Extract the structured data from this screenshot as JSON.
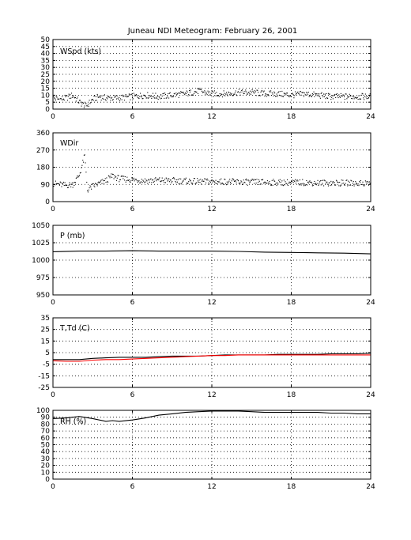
{
  "title": "Juneau NDI Meteogram:  February 26, 2001",
  "chart_data": [
    {
      "type": "scatter",
      "label": "WSpd (kts)",
      "xlim": [
        0,
        24
      ],
      "ylim": [
        0,
        50
      ],
      "xticks": [
        0,
        6,
        12,
        18,
        24
      ],
      "yticks": [
        0,
        5,
        10,
        15,
        20,
        25,
        30,
        35,
        40,
        45,
        50
      ],
      "grid": true,
      "color": "#000000",
      "x": [
        0,
        0.5,
        1,
        1.5,
        2,
        2.5,
        3,
        3.5,
        4,
        5,
        6,
        7,
        8,
        9,
        10,
        11,
        12,
        13,
        14,
        15,
        16,
        17,
        18,
        19,
        20,
        21,
        22,
        23,
        24
      ],
      "y": [
        8,
        7,
        8,
        10,
        5,
        2,
        7,
        9,
        8,
        8,
        9,
        10,
        9,
        10,
        11,
        13,
        11,
        11,
        12,
        12,
        11,
        11,
        10,
        11,
        10,
        9,
        9,
        9,
        9
      ]
    },
    {
      "type": "scatter",
      "label": "WDir",
      "xlim": [
        0,
        24
      ],
      "ylim": [
        0,
        360
      ],
      "xticks": [
        0,
        6,
        12,
        18,
        24
      ],
      "yticks": [
        0,
        90,
        180,
        270,
        360
      ],
      "grid": true,
      "color": "#000000",
      "x": [
        0,
        0.5,
        1,
        1.5,
        2,
        2.2,
        2.4,
        2.6,
        3,
        3.5,
        4,
        4.5,
        5,
        6,
        7,
        8,
        9,
        10,
        11,
        12,
        13,
        14,
        15,
        16,
        17,
        18,
        19,
        20,
        21,
        22,
        23,
        24
      ],
      "y": [
        95,
        90,
        85,
        90,
        140,
        190,
        240,
        60,
        80,
        95,
        110,
        135,
        120,
        115,
        110,
        112,
        110,
        108,
        105,
        105,
        105,
        103,
        102,
        102,
        100,
        100,
        100,
        98,
        98,
        97,
        97,
        97
      ]
    },
    {
      "type": "line",
      "label": "P (mb)",
      "xlim": [
        0,
        24
      ],
      "ylim": [
        950,
        1050
      ],
      "xticks": [
        0,
        6,
        12,
        18,
        24
      ],
      "yticks": [
        950,
        975,
        1000,
        1025,
        1050
      ],
      "grid": true,
      "color": "#000000",
      "x": [
        0,
        2,
        4,
        6,
        8,
        10,
        12,
        14,
        16,
        18,
        20,
        22,
        24
      ],
      "y": [
        1012,
        1013,
        1013,
        1013.5,
        1013,
        1013,
        1013,
        1012.5,
        1011.5,
        1011,
        1010.5,
        1010,
        1009
      ]
    },
    {
      "type": "line",
      "label": "T,Td (C)",
      "xlim": [
        0,
        24
      ],
      "ylim": [
        -25,
        35
      ],
      "xticks": [
        0,
        6,
        12,
        18,
        24
      ],
      "yticks": [
        -25,
        -15,
        -5,
        5,
        15,
        25,
        35
      ],
      "grid": true,
      "x": [
        0,
        1,
        2,
        3,
        4,
        5,
        6,
        7,
        8,
        9,
        10,
        11,
        12,
        13,
        14,
        15,
        16,
        17,
        18,
        19,
        20,
        21,
        22,
        23,
        24
      ],
      "series": [
        {
          "color": "#000000",
          "values": [
            -1,
            -1,
            -1,
            0,
            0.5,
            1,
            1,
            1,
            1.5,
            2,
            2,
            2,
            2.5,
            3,
            3,
            3,
            3,
            3.5,
            3.5,
            3.5,
            3.5,
            4,
            4,
            4,
            4.5
          ]
        },
        {
          "color": "#ff0000",
          "values": [
            -2,
            -2.5,
            -2.5,
            -1.5,
            -1,
            -1,
            -0.5,
            0,
            0.5,
            1,
            1.5,
            2,
            2.5,
            2.5,
            3,
            3,
            3,
            3,
            3,
            3,
            3,
            3,
            3,
            3,
            3
          ]
        }
      ]
    },
    {
      "type": "line",
      "label": "RH (%)",
      "xlim": [
        0,
        24
      ],
      "ylim": [
        0,
        100
      ],
      "xticks": [
        0,
        6,
        12,
        18,
        24
      ],
      "yticks": [
        0,
        10,
        20,
        30,
        40,
        50,
        60,
        70,
        80,
        90,
        100
      ],
      "grid": true,
      "color": "#000000",
      "x": [
        0,
        1,
        2,
        3,
        4,
        4.5,
        5,
        6,
        7,
        8,
        9,
        10,
        11,
        12,
        13,
        14,
        15,
        16,
        17,
        18,
        19,
        20,
        21,
        22,
        23,
        24
      ],
      "y": [
        88,
        89,
        91,
        88,
        84,
        85,
        84,
        86,
        89,
        93,
        95,
        97,
        98,
        99,
        99,
        99,
        98,
        97,
        97,
        97,
        97,
        97,
        96,
        96,
        95,
        95
      ]
    }
  ]
}
